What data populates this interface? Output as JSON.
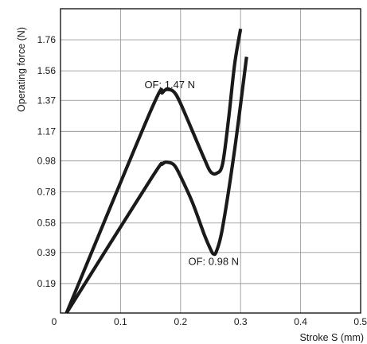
{
  "chart_data": {
    "type": "line",
    "xlabel": "Stroke S (mm)",
    "ylabel": "Operating force (N)",
    "xlim": [
      0,
      0.5
    ],
    "ylim": [
      0,
      1.96
    ],
    "x_ticks": [
      0,
      0.1,
      0.2,
      0.3,
      0.4,
      0.5
    ],
    "x_tick_labels": [
      "0",
      "0.1",
      "0.2",
      "0.3",
      "0.4",
      "0.5"
    ],
    "y_ticks": [
      0.19,
      0.39,
      0.58,
      0.78,
      0.98,
      1.17,
      1.37,
      1.56,
      1.76
    ],
    "y_tick_labels": [
      "0.19",
      "0.39",
      "0.58",
      "0.78",
      "0.98",
      "1.17",
      "1.37",
      "1.56",
      "1.76"
    ],
    "grid": true,
    "series": [
      {
        "x": [
          0.01,
          0.15,
          0.17,
          0.18,
          0.19,
          0.2,
          0.22,
          0.24,
          0.25,
          0.26,
          0.27,
          0.28,
          0.29,
          0.3
        ],
        "y": [
          0.0,
          1.3,
          1.42,
          1.44,
          1.42,
          1.35,
          1.17,
          0.99,
          0.91,
          0.9,
          0.96,
          1.25,
          1.6,
          1.83
        ]
      },
      {
        "x": [
          0.01,
          0.15,
          0.17,
          0.18,
          0.19,
          0.2,
          0.22,
          0.24,
          0.25,
          0.255,
          0.26,
          0.27,
          0.29,
          0.31
        ],
        "y": [
          0.0,
          0.86,
          0.96,
          0.97,
          0.95,
          0.88,
          0.71,
          0.5,
          0.41,
          0.38,
          0.4,
          0.55,
          1.05,
          1.65
        ]
      }
    ],
    "annotations": [
      {
        "text": "OF: 1.47 N",
        "x": 0.182,
        "y": 1.47
      },
      {
        "text": "OF: 0.98 N",
        "x": 0.255,
        "y": 0.33
      }
    ]
  }
}
